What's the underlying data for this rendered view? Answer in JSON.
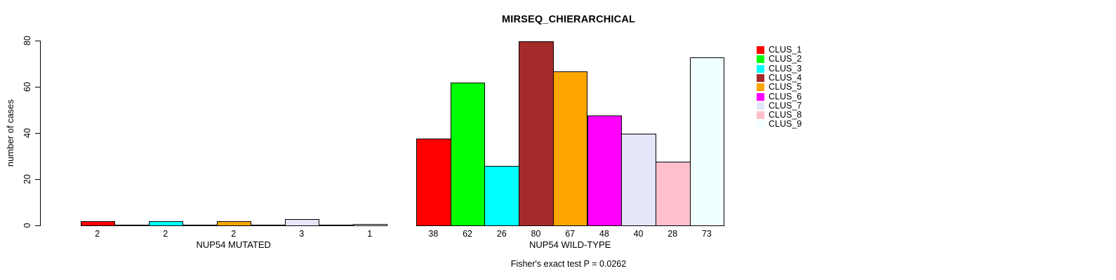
{
  "chart_data": {
    "type": "bar",
    "title": "MIRSEQ_CHIERARCHICAL",
    "ylabel": "number of cases",
    "ylim": [
      0,
      80
    ],
    "yticks": [
      0,
      20,
      40,
      60,
      80
    ],
    "grid": false,
    "legend_position": "right",
    "series": [
      "CLUS_1",
      "CLUS_2",
      "CLUS_3",
      "CLUS_4",
      "CLUS_5",
      "CLUS_6",
      "CLUS_7",
      "CLUS_8",
      "CLUS_9"
    ],
    "series_colors": [
      "#FF0000",
      "#00FF00",
      "#00FFFF",
      "#A52A2A",
      "#FFA500",
      "#FF00FF",
      "#E6E6FA",
      "#FFC0CB",
      "#F0FFFF"
    ],
    "bar_border_color": "#000000",
    "groups": [
      {
        "label": "NUP54 MUTATED",
        "values": [
          2,
          0,
          2,
          0,
          2,
          0,
          3,
          0,
          1
        ]
      },
      {
        "label": "NUP54 WILD-TYPE",
        "values": [
          38,
          62,
          26,
          80,
          67,
          48,
          40,
          28,
          73
        ]
      }
    ],
    "annotation": "Fisher's exact test P = 0.0262"
  }
}
